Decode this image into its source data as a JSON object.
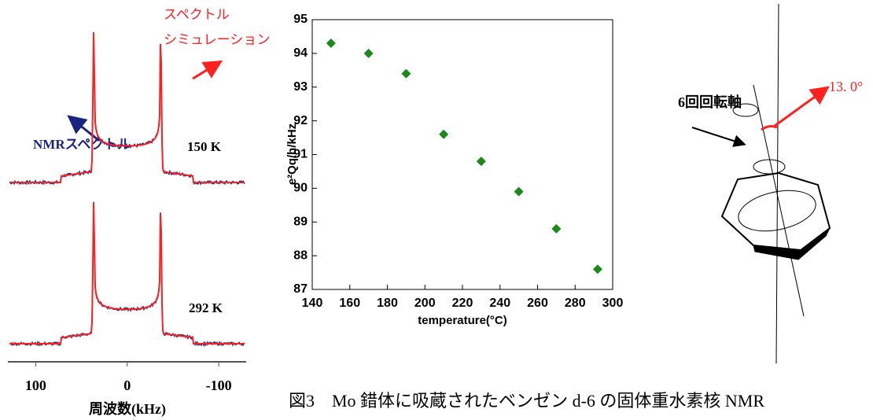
{
  "chart_data": [
    {
      "type": "spectrum",
      "xlim": [
        130,
        -130
      ],
      "xticks": [
        100,
        0,
        -100
      ],
      "xlabel": "周波数(kHz)",
      "series": [
        {
          "name": "NMRスペクトル",
          "color": "#1a237e"
        },
        {
          "name": "スペクトルシミュレーション",
          "color": "#ff2020"
        }
      ],
      "traces": [
        "150 K",
        "292 K"
      ]
    },
    {
      "type": "scatter",
      "color": "#1a8a1a",
      "xlabel": "temperature(°C)",
      "ylabel": "e²Qq/h/kHz",
      "x": [
        150,
        170,
        190,
        210,
        230,
        250,
        270,
        292
      ],
      "values": [
        94.3,
        94.0,
        93.4,
        91.6,
        90.8,
        89.9,
        88.8,
        87.6
      ],
      "xlim": [
        140,
        300
      ],
      "ylim": [
        87,
        95
      ],
      "xticks": [
        140,
        160,
        180,
        200,
        220,
        240,
        260,
        280,
        300
      ],
      "yticks": [
        87,
        88,
        89,
        90,
        91,
        92,
        93,
        94,
        95
      ]
    }
  ],
  "diagram": {
    "axis_label": "6回回転軸",
    "angle_label": "13. 0°"
  },
  "caption": "図3　Mo 錯体に吸蔵されたベンゼン d-6 の固体重水素核 NMR"
}
